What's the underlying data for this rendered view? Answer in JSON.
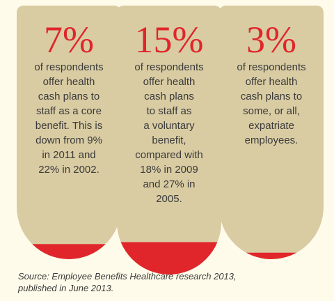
{
  "chart_data": {
    "type": "bar",
    "title": "",
    "categories": [
      "offer health cash plans to staff as a core benefit",
      "offer health cash plans to staff as a voluntary benefit",
      "offer health cash plans to some, or all, expatriate employees"
    ],
    "values": [
      7,
      15,
      3
    ],
    "unit": "%",
    "colors": {
      "tube": "#d9cca3",
      "fill": "#e0262b",
      "value_text": "#e0262b",
      "body_text": "#3a3a3a",
      "background": "#fffbea"
    },
    "tubes": [
      {
        "value_label": "7%",
        "desc_lines": [
          "of respondents",
          "offer health",
          "cash plans to",
          "staff as a core",
          "benefit. This is",
          "down from 9%",
          "in 2011 and",
          "22% in 2002."
        ]
      },
      {
        "value_label": "15%",
        "desc_lines": [
          "of respondents",
          "offer health",
          "cash plans",
          "to staff as",
          "a voluntary",
          "benefit,",
          "compared with",
          "18% in 2009",
          "and 27% in",
          "2005."
        ]
      },
      {
        "value_label": "3%",
        "desc_lines": [
          "of respondents",
          "offer health",
          "cash plans to",
          "some, or all,",
          "expatriate",
          "employees."
        ]
      }
    ]
  },
  "source": {
    "line1": "Source: Employee Benefits Healthcare research 2013,",
    "line2": "published in June 2013."
  }
}
